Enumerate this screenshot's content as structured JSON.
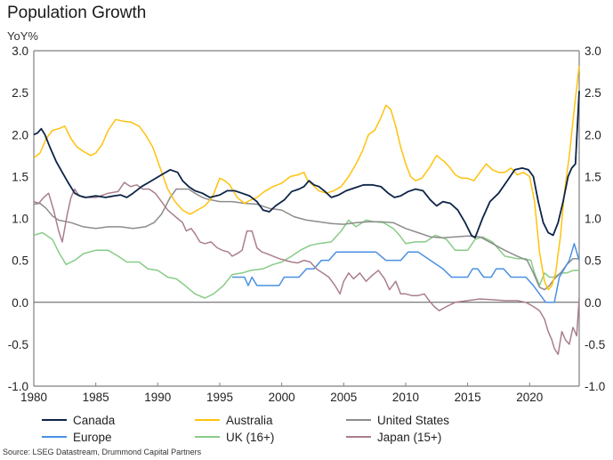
{
  "chart_data": {
    "type": "line",
    "title": "Population Growth",
    "subtitle": "YoY%",
    "xlabel": "",
    "ylabel": "YoY%",
    "xlim": [
      1980,
      2024
    ],
    "ylim": [
      -1.0,
      3.0
    ],
    "x_ticks": [
      "1980",
      "1985",
      "1990",
      "1995",
      "2000",
      "2005",
      "2010",
      "2015",
      "2020"
    ],
    "x_tick_values": [
      1980,
      1985,
      1990,
      1995,
      2000,
      2005,
      2010,
      2015,
      2020
    ],
    "y_ticks": [
      "3.0",
      "2.5",
      "2.0",
      "1.5",
      "1.0",
      "0.5",
      "0.0",
      "-0.5",
      "-1.0"
    ],
    "y_tick_values": [
      3.0,
      2.5,
      2.0,
      1.5,
      1.0,
      0.5,
      0.0,
      -0.5,
      -1.0
    ],
    "y_axis_both_sides": true,
    "grid": false,
    "zero_line": true,
    "legend_position": "bottom",
    "source": "Source: LSEG Datastream, Drummond Capital Partners",
    "series": [
      {
        "name": "Canada",
        "color": "#0d2447",
        "x": [
          1980,
          1980.3,
          1980.6,
          1980.9,
          1981.3,
          1981.8,
          1982.3,
          1982.8,
          1983.3,
          1983.7,
          1984.2,
          1985,
          1985.8,
          1986.5,
          1987,
          1987.5,
          1988,
          1988.7,
          1989.5,
          1990.3,
          1991,
          1991.6,
          1992,
          1992.5,
          1993,
          1993.6,
          1994.2,
          1995,
          1995.6,
          1996.2,
          1996.8,
          1997.4,
          1998,
          1998.5,
          1999,
          1999.5,
          2000.2,
          2000.8,
          2001.4,
          2001.8,
          2002.2,
          2002.6,
          2003,
          2003.5,
          2004,
          2004.6,
          2005.2,
          2006,
          2006.6,
          2007.3,
          2008,
          2008.6,
          2009.1,
          2009.6,
          2010.2,
          2010.8,
          2011.4,
          2012,
          2012.5,
          2013,
          2013.6,
          2014.2,
          2014.8,
          2015.3,
          2015.6,
          2016.2,
          2016.8,
          2017.5,
          2018.2,
          2018.8,
          2019.4,
          2019.9,
          2020.3,
          2020.7,
          2021.1,
          2021.5,
          2021.9,
          2022.3,
          2022.7,
          2023.1,
          2023.4,
          2023.7,
          2024
        ],
        "values": [
          2.0,
          2.02,
          2.07,
          2.0,
          1.85,
          1.68,
          1.55,
          1.42,
          1.3,
          1.27,
          1.25,
          1.27,
          1.25,
          1.27,
          1.28,
          1.25,
          1.3,
          1.38,
          1.45,
          1.52,
          1.58,
          1.55,
          1.45,
          1.38,
          1.33,
          1.3,
          1.25,
          1.28,
          1.33,
          1.33,
          1.3,
          1.27,
          1.2,
          1.1,
          1.08,
          1.15,
          1.22,
          1.32,
          1.35,
          1.38,
          1.45,
          1.4,
          1.38,
          1.32,
          1.25,
          1.28,
          1.33,
          1.37,
          1.4,
          1.4,
          1.38,
          1.3,
          1.25,
          1.27,
          1.32,
          1.35,
          1.33,
          1.22,
          1.15,
          1.2,
          1.18,
          1.1,
          0.95,
          0.8,
          0.77,
          1.0,
          1.2,
          1.3,
          1.45,
          1.58,
          1.6,
          1.58,
          1.5,
          1.2,
          0.95,
          0.83,
          0.8,
          0.95,
          1.2,
          1.5,
          1.6,
          1.65,
          2.52
        ]
      },
      {
        "name": "Australia",
        "color": "#ffc20e",
        "x": [
          1980,
          1980.5,
          1981,
          1981.5,
          1982,
          1982.5,
          1983,
          1983.5,
          1984,
          1984.6,
          1985,
          1985.5,
          1986,
          1986.6,
          1987.2,
          1987.8,
          1988.5,
          1989,
          1989.6,
          1990.2,
          1990.8,
          1991.4,
          1992,
          1992.6,
          1993.2,
          1993.8,
          1994.4,
          1995,
          1995.4,
          1995.8,
          1996.4,
          1997,
          1997.5,
          1998,
          1998.6,
          1999.3,
          2000,
          2000.7,
          2001.3,
          2001.8,
          2002.1,
          2002.5,
          2003,
          2003.6,
          2004.2,
          2004.8,
          2005.4,
          2006,
          2006.5,
          2007,
          2007.5,
          2008,
          2008.4,
          2008.8,
          2009.2,
          2009.6,
          2010,
          2010.4,
          2010.8,
          2011.3,
          2011.9,
          2012.5,
          2013.1,
          2013.6,
          2014,
          2014.5,
          2015,
          2015.5,
          2016,
          2016.5,
          2017,
          2017.5,
          2018,
          2018.5,
          2019,
          2019.5,
          2020,
          2020.4,
          2020.8,
          2021.2,
          2021.5,
          2021.8,
          2022.1,
          2022.5,
          2022.8,
          2023.2,
          2023.6,
          2024
        ],
        "values": [
          1.72,
          1.78,
          1.95,
          2.05,
          2.07,
          2.1,
          1.95,
          1.85,
          1.8,
          1.75,
          1.78,
          1.88,
          2.05,
          2.18,
          2.16,
          2.15,
          2.1,
          2.0,
          1.85,
          1.6,
          1.35,
          1.2,
          1.1,
          1.05,
          1.1,
          1.15,
          1.25,
          1.48,
          1.45,
          1.4,
          1.25,
          1.18,
          1.22,
          1.25,
          1.32,
          1.38,
          1.42,
          1.5,
          1.52,
          1.55,
          1.45,
          1.4,
          1.33,
          1.3,
          1.33,
          1.38,
          1.5,
          1.65,
          1.8,
          2.0,
          2.05,
          2.2,
          2.35,
          2.3,
          2.1,
          1.85,
          1.65,
          1.5,
          1.45,
          1.48,
          1.6,
          1.75,
          1.68,
          1.6,
          1.52,
          1.48,
          1.48,
          1.45,
          1.55,
          1.65,
          1.58,
          1.55,
          1.55,
          1.6,
          1.52,
          1.55,
          1.5,
          1.2,
          0.6,
          0.25,
          0.15,
          0.2,
          0.35,
          0.8,
          1.3,
          1.75,
          2.3,
          2.82
        ]
      },
      {
        "name": "United States",
        "color": "#8c8c8c",
        "x": [
          1980,
          1980.5,
          1981,
          1981.5,
          1982,
          1983,
          1984,
          1985,
          1986,
          1987,
          1988,
          1989,
          1989.7,
          1990.3,
          1991,
          1991.5,
          1992,
          1992.5,
          1993,
          1993.6,
          1994,
          1995,
          1996,
          1997,
          1998,
          1999,
          2000,
          2001,
          2002,
          2003,
          2004,
          2005,
          2006,
          2007,
          2008,
          2009,
          2010,
          2011,
          2012,
          2013,
          2014,
          2015,
          2016,
          2017,
          2018,
          2019,
          2019.8,
          2020.3,
          2020.8,
          2021.2,
          2021.6,
          2022,
          2022.5,
          2023,
          2023.5,
          2024
        ],
        "values": [
          1.17,
          1.18,
          1.12,
          1.03,
          0.98,
          0.95,
          0.9,
          0.88,
          0.9,
          0.9,
          0.88,
          0.9,
          0.95,
          1.05,
          1.25,
          1.35,
          1.35,
          1.35,
          1.3,
          1.25,
          1.23,
          1.2,
          1.2,
          1.18,
          1.17,
          1.12,
          1.1,
          1.02,
          0.98,
          0.96,
          0.94,
          0.93,
          0.95,
          0.96,
          0.96,
          0.95,
          0.88,
          0.83,
          0.78,
          0.77,
          0.78,
          0.79,
          0.78,
          0.7,
          0.62,
          0.55,
          0.5,
          0.35,
          0.18,
          0.15,
          0.2,
          0.28,
          0.35,
          0.45,
          0.52,
          0.52
        ]
      },
      {
        "name": "Europe",
        "color": "#4a90e2",
        "x": [
          1996,
          1996.6,
          1997,
          1997.3,
          1997.6,
          1998,
          1998.6,
          1999.2,
          1999.8,
          2000.2,
          2000.8,
          2001.4,
          2002,
          2002.6,
          2003.2,
          2003.8,
          2004.4,
          2005,
          2005.6,
          2006.2,
          2007,
          2007.6,
          2008.4,
          2009,
          2009.6,
          2010.2,
          2011,
          2012,
          2013,
          2013.7,
          2014.3,
          2015,
          2015.4,
          2015.8,
          2016.3,
          2016.9,
          2017.3,
          2017.9,
          2018.5,
          2019.1,
          2019.7,
          2020.3,
          2020.8,
          2021.3,
          2021.6,
          2022,
          2022.4,
          2022.8,
          2023.2,
          2023.6,
          2024
        ],
        "values": [
          0.3,
          0.3,
          0.3,
          0.2,
          0.3,
          0.2,
          0.2,
          0.2,
          0.2,
          0.3,
          0.3,
          0.3,
          0.4,
          0.4,
          0.5,
          0.5,
          0.6,
          0.6,
          0.6,
          0.6,
          0.6,
          0.6,
          0.5,
          0.5,
          0.5,
          0.6,
          0.6,
          0.5,
          0.4,
          0.3,
          0.3,
          0.3,
          0.4,
          0.4,
          0.3,
          0.3,
          0.4,
          0.4,
          0.3,
          0.3,
          0.3,
          0.2,
          0.1,
          0.0,
          0.0,
          0.0,
          0.3,
          0.4,
          0.5,
          0.7,
          0.5
        ]
      },
      {
        "name": "UK (16+)",
        "color": "#88cc88",
        "x": [
          1980,
          1980.7,
          1981.5,
          1982,
          1982.6,
          1983.3,
          1984,
          1985,
          1986,
          1986.8,
          1987.5,
          1988.5,
          1989.2,
          1990,
          1990.8,
          1991.5,
          1992.2,
          1993,
          1993.8,
          1994.5,
          1995.3,
          1996,
          1996.8,
          1997.5,
          1998.5,
          1999.3,
          2000,
          2000.8,
          2001.5,
          2002.3,
          2003,
          2004,
          2004.8,
          2005.4,
          2006,
          2006.8,
          2007.5,
          2008.2,
          2009,
          2009.5,
          2010,
          2010.8,
          2011.6,
          2012.4,
          2013.3,
          2014,
          2015,
          2015.6,
          2016.2,
          2017,
          2018,
          2019,
          2019.6,
          2020.1,
          2020.4,
          2020.8,
          2021.2,
          2021.6,
          2022,
          2022.5,
          2023,
          2023.5,
          2024
        ],
        "values": [
          0.8,
          0.83,
          0.75,
          0.6,
          0.45,
          0.5,
          0.58,
          0.62,
          0.62,
          0.55,
          0.48,
          0.48,
          0.4,
          0.38,
          0.3,
          0.28,
          0.2,
          0.1,
          0.05,
          0.1,
          0.2,
          0.33,
          0.35,
          0.38,
          0.4,
          0.45,
          0.48,
          0.55,
          0.62,
          0.68,
          0.7,
          0.72,
          0.85,
          0.98,
          0.9,
          0.98,
          0.96,
          0.95,
          0.88,
          0.8,
          0.7,
          0.72,
          0.72,
          0.8,
          0.75,
          0.62,
          0.62,
          0.75,
          0.78,
          0.72,
          0.55,
          0.52,
          0.52,
          0.5,
          0.35,
          0.2,
          0.35,
          0.3,
          0.3,
          0.35,
          0.35,
          0.38,
          0.38
        ]
      },
      {
        "name": "Japan (15+)",
        "color": "#a97f8c",
        "x": [
          1980,
          1980.4,
          1980.8,
          1981.2,
          1981.6,
          1982,
          1982.3,
          1982.7,
          1983,
          1983.3,
          1983.6,
          1984,
          1985,
          1986,
          1986.8,
          1987.3,
          1987.8,
          1988.3,
          1988.8,
          1989.3,
          1989.8,
          1990.3,
          1990.8,
          1991.2,
          1991.6,
          1992,
          1992.3,
          1992.7,
          1993,
          1993.4,
          1993.8,
          1994.3,
          1994.8,
          1995.2,
          1995.7,
          1996,
          1996.4,
          1996.8,
          1997.2,
          1997.6,
          1998,
          1998.4,
          1998.8,
          1999.3,
          1999.8,
          2000.3,
          2000.8,
          2001.3,
          2001.8,
          2002.3,
          2002.8,
          2003.3,
          2003.8,
          2004.3,
          2004.7,
          2005,
          2005.4,
          2005.8,
          2006.3,
          2006.8,
          2007.3,
          2007.8,
          2008.3,
          2008.7,
          2009.2,
          2009.6,
          2010,
          2010.5,
          2011,
          2011.5,
          2011.9,
          2012.3,
          2012.7,
          2013.3,
          2014,
          2015,
          2016,
          2017,
          2018,
          2019,
          2019.7,
          2020.3,
          2020.8,
          2021.2,
          2021.5,
          2021.8,
          2022,
          2022.3,
          2022.6,
          2022.9,
          2023.2,
          2023.5,
          2023.8,
          2024
        ],
        "values": [
          1.2,
          1.18,
          1.25,
          1.3,
          1.1,
          0.85,
          0.72,
          1.05,
          1.25,
          1.35,
          1.28,
          1.25,
          1.25,
          1.3,
          1.32,
          1.43,
          1.38,
          1.4,
          1.35,
          1.35,
          1.3,
          1.2,
          1.1,
          1.05,
          1.0,
          0.95,
          0.85,
          0.88,
          0.82,
          0.72,
          0.7,
          0.72,
          0.65,
          0.62,
          0.6,
          0.55,
          0.58,
          0.62,
          0.85,
          0.85,
          0.65,
          0.6,
          0.58,
          0.55,
          0.52,
          0.5,
          0.48,
          0.47,
          0.5,
          0.48,
          0.4,
          0.35,
          0.3,
          0.2,
          0.1,
          0.25,
          0.35,
          0.28,
          0.35,
          0.25,
          0.32,
          0.38,
          0.28,
          0.15,
          0.25,
          0.1,
          0.1,
          0.08,
          0.08,
          0.1,
          0.02,
          -0.05,
          -0.1,
          -0.05,
          0.0,
          0.02,
          0.04,
          0.03,
          0.02,
          0.02,
          0.0,
          -0.05,
          -0.1,
          -0.2,
          -0.35,
          -0.45,
          -0.55,
          -0.62,
          -0.35,
          -0.45,
          -0.5,
          -0.3,
          -0.4,
          0.05
        ]
      }
    ]
  }
}
